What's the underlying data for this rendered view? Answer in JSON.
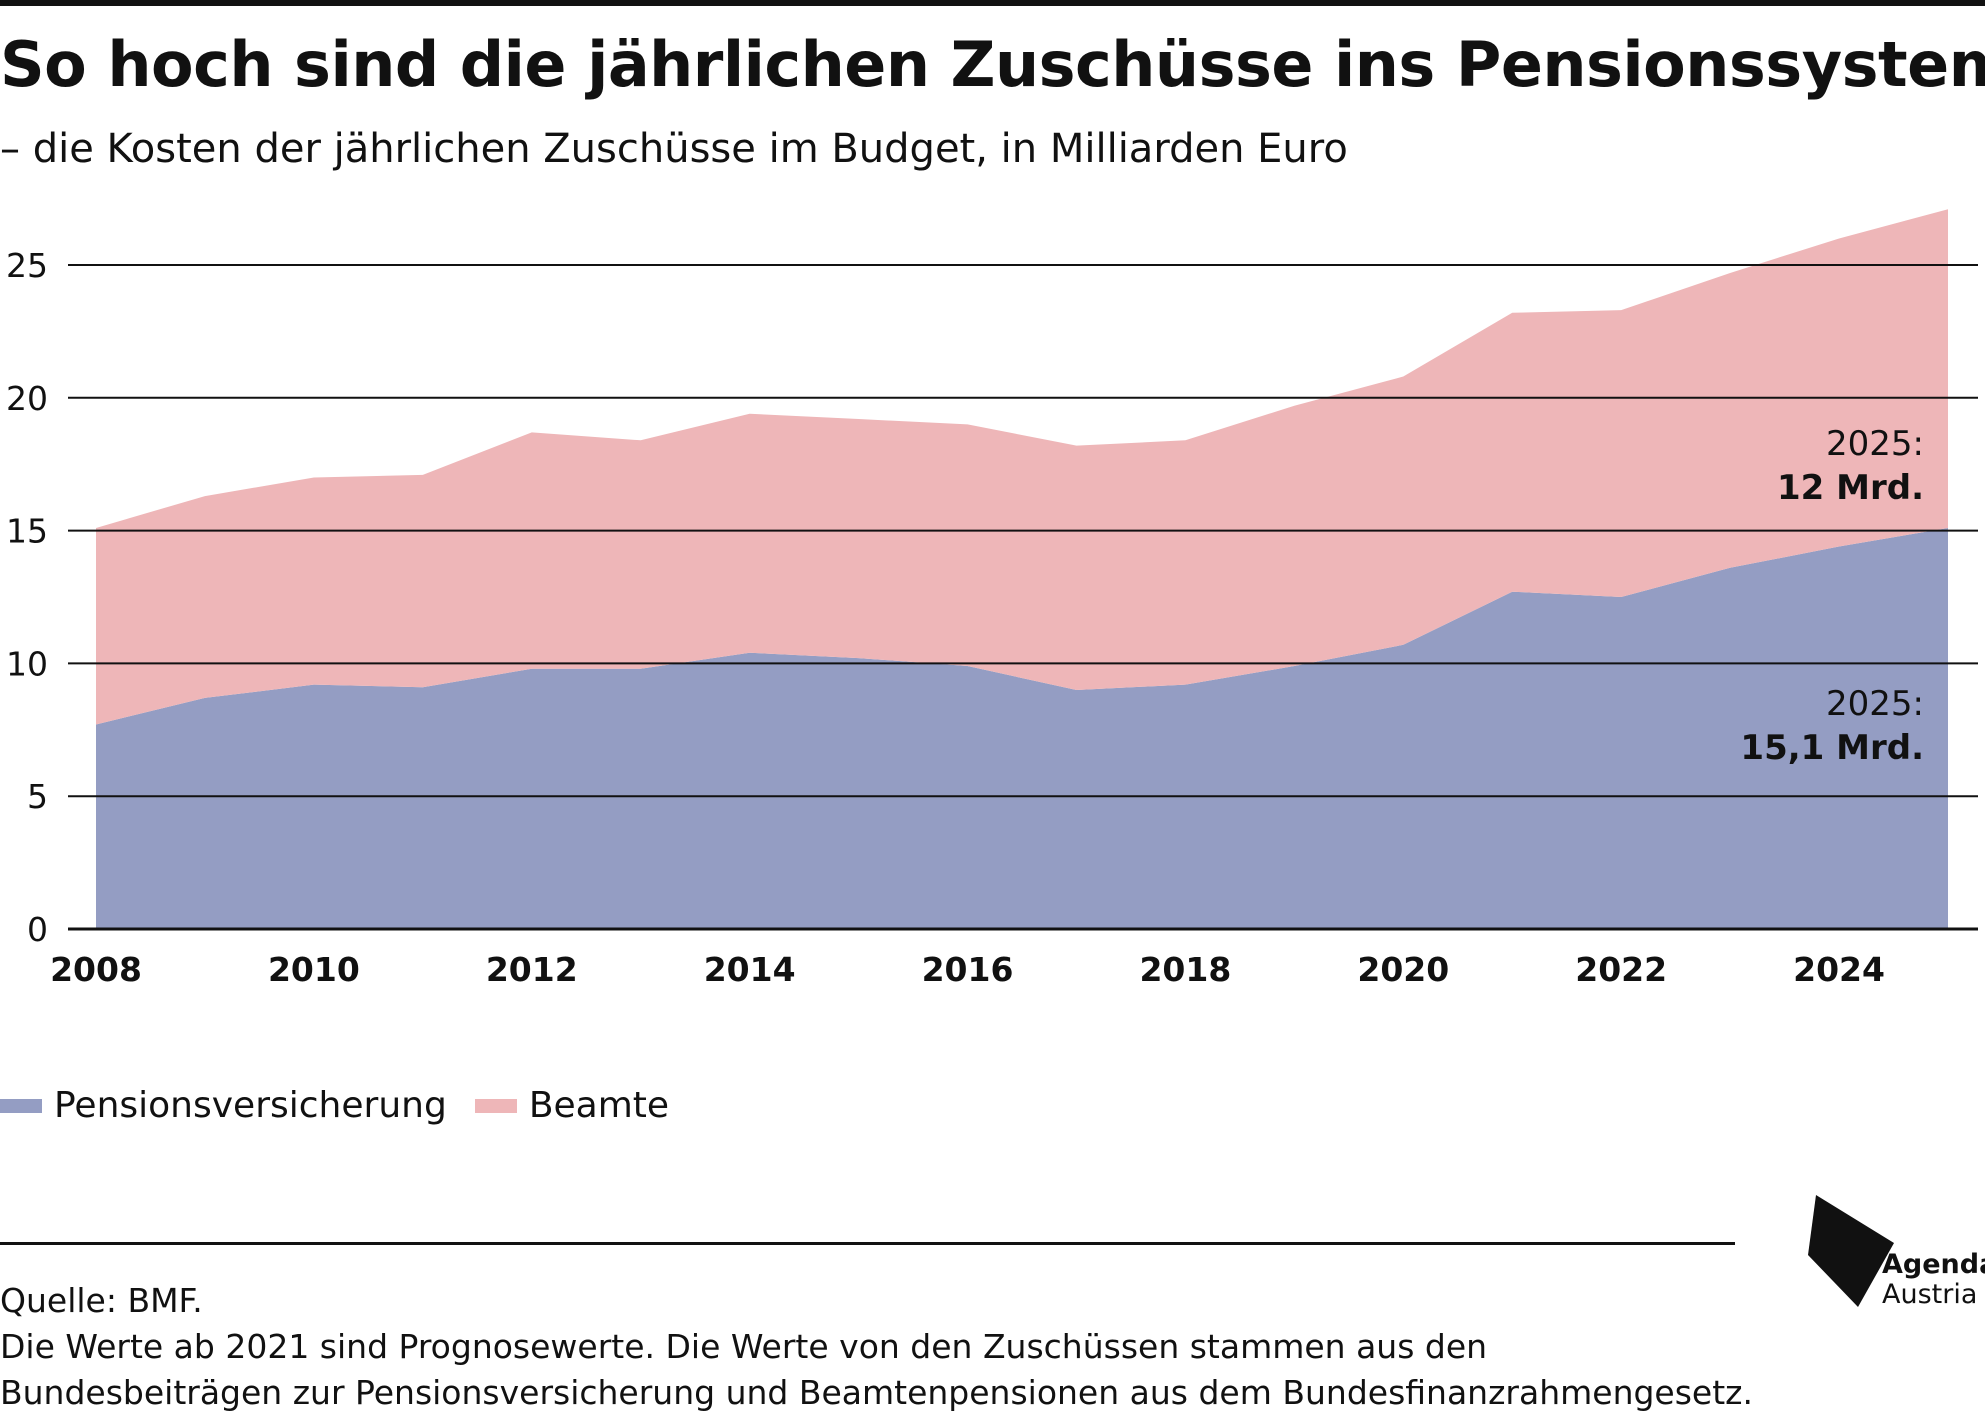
{
  "title": "So hoch sind die jährlichen Zuschüsse ins Pensionssystem",
  "subtitle": "– die Kosten der jährlichen Zuschüsse im Budget, in Milliarden Euro",
  "chart_data": {
    "type": "area",
    "stacked": true,
    "x": [
      2008,
      2009,
      2010,
      2011,
      2012,
      2013,
      2014,
      2015,
      2016,
      2017,
      2018,
      2019,
      2020,
      2021,
      2022,
      2023,
      2024,
      2025
    ],
    "series": [
      {
        "name": "Pensionsversicherung",
        "color": "#949dc3",
        "values": [
          7.7,
          8.7,
          9.2,
          9.1,
          9.8,
          9.8,
          10.4,
          10.2,
          9.9,
          9.0,
          9.2,
          9.9,
          10.7,
          12.7,
          12.5,
          13.6,
          14.4,
          15.1
        ]
      },
      {
        "name": "Beamte",
        "color": "#eeb6b8",
        "values": [
          7.4,
          7.6,
          7.8,
          8.0,
          8.9,
          8.6,
          9.0,
          9.0,
          9.1,
          9.2,
          9.2,
          9.8,
          10.1,
          10.5,
          10.8,
          11.1,
          11.6,
          12.0
        ]
      }
    ],
    "ylim": [
      0,
      27
    ],
    "yticks": [
      0,
      5,
      10,
      15,
      20,
      25
    ],
    "xticks": [
      2008,
      2010,
      2012,
      2014,
      2016,
      2018,
      2020,
      2022,
      2024
    ],
    "grid": true,
    "legend": "bottom-left",
    "annotations": [
      {
        "year": "2025:",
        "value": "12 Mrd.",
        "series": "Beamte"
      },
      {
        "year": "2025:",
        "value": "15,1 Mrd.",
        "series": "Pensionsversicherung"
      }
    ]
  },
  "legend": {
    "items": [
      {
        "label": "Pensionsversicherung",
        "color": "#949dc3"
      },
      {
        "label": "Beamte",
        "color": "#eeb6b8"
      }
    ]
  },
  "footer": {
    "source": "Quelle: BMF.",
    "note_line1": "Die Werte ab 2021 sind Prognosewerte. Die Werte von den Zuschüssen stammen aus den",
    "note_line2": "Bundesbeiträgen zur Pensionsversicherung und Beamtenpensionen aus dem Bundesfinanzrahmengesetz."
  },
  "logo": {
    "line1": "Agenda",
    "line2": "Austria"
  }
}
